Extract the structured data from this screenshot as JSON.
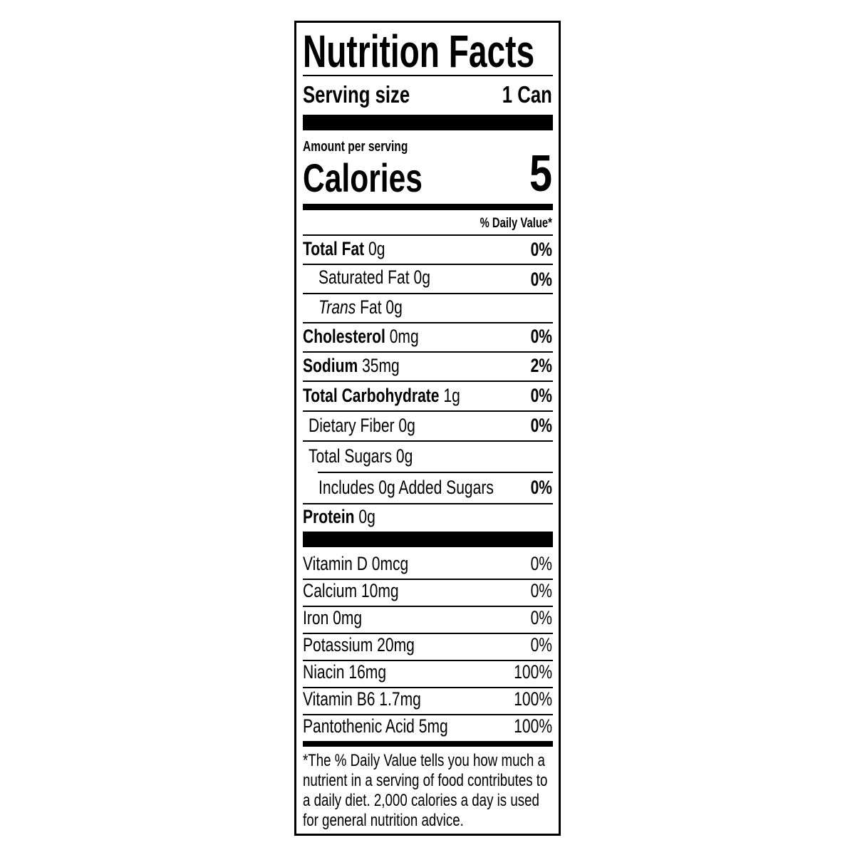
{
  "title": "Nutrition Facts",
  "serving": {
    "label": "Serving size",
    "value": "1 Can"
  },
  "amount_per_serving": "Amount per serving",
  "calories": {
    "label": "Calories",
    "value": "5"
  },
  "daily_value_header": "% Daily Value*",
  "nutrients": [
    {
      "name": "Total Fat",
      "amount": "0g",
      "dv": "0%"
    },
    {
      "name": "Saturated Fat",
      "amount": "0g",
      "dv": "0%"
    },
    {
      "name": "Trans",
      "name_rest": "Fat",
      "amount": "0g",
      "dv": ""
    },
    {
      "name": "Cholesterol",
      "amount": "0mg",
      "dv": "0%"
    },
    {
      "name": "Sodium",
      "amount": "35mg",
      "dv": "2%"
    },
    {
      "name": "Total Carbohydrate",
      "amount": "1g",
      "dv": "0%"
    },
    {
      "name": "Dietary Fiber",
      "amount": "0g",
      "dv": "0%"
    },
    {
      "name": "Total Sugars",
      "amount": "0g",
      "dv": ""
    },
    {
      "name": "Includes 0g Added Sugars",
      "amount": "",
      "dv": "0%"
    },
    {
      "name": "Protein",
      "amount": "0g",
      "dv": ""
    }
  ],
  "vitamins": [
    {
      "text": "Vitamin D 0mcg",
      "dv": "0%"
    },
    {
      "text": "Calcium 10mg",
      "dv": "0%"
    },
    {
      "text": "Iron 0mg",
      "dv": "0%"
    },
    {
      "text": "Potassium 20mg",
      "dv": "0%"
    },
    {
      "text": "Niacin 16mg",
      "dv": "100%"
    },
    {
      "text": "Vitamin B6 1.7mg",
      "dv": "100%"
    },
    {
      "text": "Pantothenic Acid 5mg",
      "dv": "100%"
    }
  ],
  "footnote": [
    "*The % Daily Value tells you how much a",
    "nutrient in a serving of food contributes to",
    "a daily diet. 2,000 calories a day is used",
    "for general nutrition advice."
  ]
}
